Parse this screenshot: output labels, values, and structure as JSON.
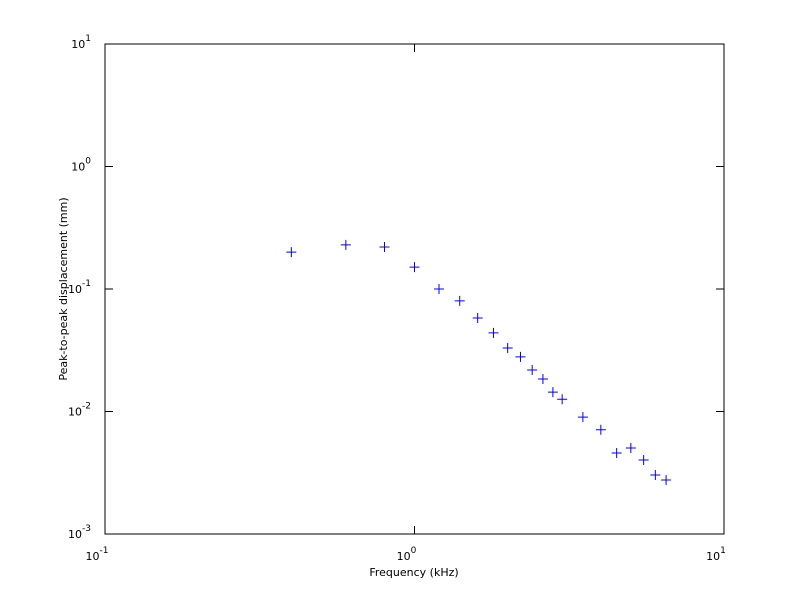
{
  "chart_data": {
    "type": "scatter",
    "x_label": "Frequency (kHz)",
    "y_label": "Peak-to-peak displacement (mm)",
    "log_x": true,
    "log_y": true,
    "xlim": [
      0.1,
      10
    ],
    "ylim": [
      0.001,
      10
    ],
    "xticks": [
      {
        "value": 0.1,
        "label": "10",
        "exponent": "-1"
      },
      {
        "value": 1,
        "label": "10",
        "exponent": "0"
      },
      {
        "value": 10,
        "label": "10",
        "exponent": "1"
      }
    ],
    "yticks": [
      {
        "value": 0.001,
        "label": "10",
        "exponent": "-3"
      },
      {
        "value": 0.01,
        "label": "10",
        "exponent": "-2"
      },
      {
        "value": 0.1,
        "label": "10",
        "exponent": "-1"
      },
      {
        "value": 1,
        "label": "10",
        "exponent": "0"
      },
      {
        "value": 10,
        "label": "10",
        "exponent": "1"
      }
    ],
    "series": [
      {
        "color": "#0000ff",
        "x": [
          0.4,
          0.6,
          0.8,
          1.0,
          1.2,
          1.4,
          1.6,
          1.8,
          2.0,
          2.2,
          2.4,
          2.6,
          2.8,
          3.0,
          3.5,
          4.0,
          4.5,
          5.0,
          5.5,
          6.0,
          6.5
        ],
        "values": [
          0.2,
          0.229,
          0.22,
          0.151,
          0.1,
          0.08,
          0.058,
          0.0438,
          0.033,
          0.0279,
          0.0218,
          0.0184,
          0.0144,
          0.0126,
          0.009,
          0.0071,
          0.00458,
          0.00504,
          0.00402,
          0.00303,
          0.00276
        ]
      }
    ]
  }
}
